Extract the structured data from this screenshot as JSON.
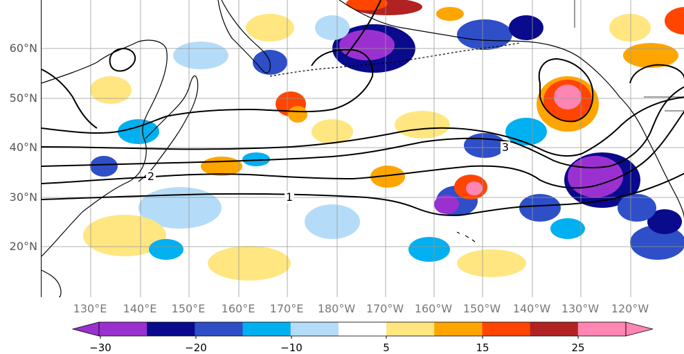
{
  "map": {
    "lat_labels": [
      "60°N",
      "50°N",
      "40°N",
      "30°N",
      "20°N"
    ],
    "lon_labels": [
      "130°E",
      "140°E",
      "150°E",
      "160°E",
      "170°E",
      "180°W",
      "170°W",
      "160°W",
      "150°W",
      "140°W",
      "130°W",
      "120°W"
    ],
    "contour_labels": [
      "1",
      "2",
      "3"
    ]
  },
  "colorbar": {
    "tick_labels": [
      "−30",
      "−20",
      "−10",
      "5",
      "15",
      "25"
    ],
    "colors": [
      "#9b30d0",
      "#0a0a8c",
      "#2e4fc8",
      "#00b0f0",
      "#b4dcf8",
      "#ffffff",
      "#ffe680",
      "#ffa500",
      "#ff4500",
      "#b22222",
      "#ff85b3"
    ]
  },
  "colors": {
    "land_outline": "#000000",
    "grid": "#999999",
    "contour": "#000000"
  }
}
